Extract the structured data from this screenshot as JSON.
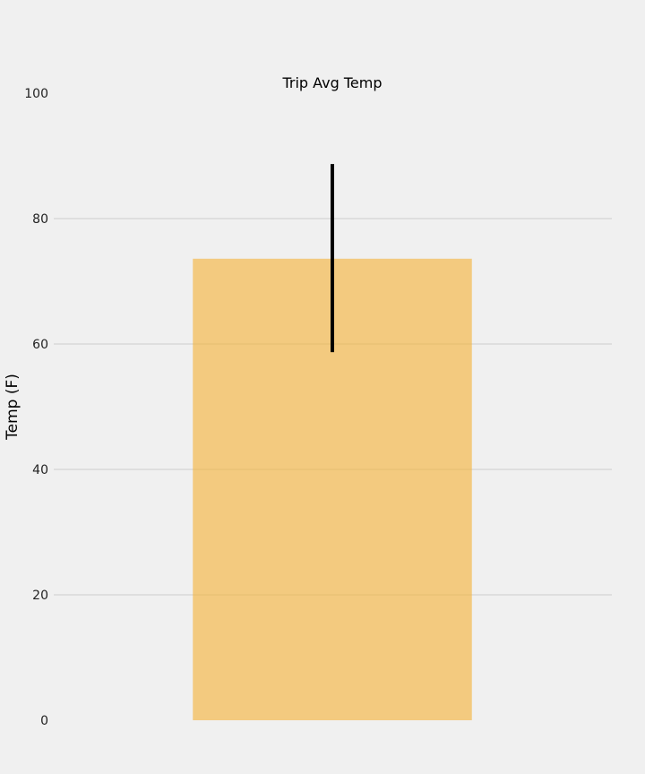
{
  "chart_data": {
    "type": "bar",
    "title": "Trip Avg Temp",
    "xlabel": "",
    "ylabel": "Temp (F)",
    "ylim": [
      0,
      100
    ],
    "yticks": [
      0,
      20,
      40,
      60,
      80,
      100
    ],
    "grid": true,
    "categories": [
      ""
    ],
    "values": [
      73.6
    ],
    "error": {
      "low": 58.7,
      "high": 88.7
    },
    "colors": {
      "bar": "#f5b642",
      "error_bar": "#000000",
      "grid": "#cbcbcb",
      "background": "#f0f0f0"
    }
  }
}
